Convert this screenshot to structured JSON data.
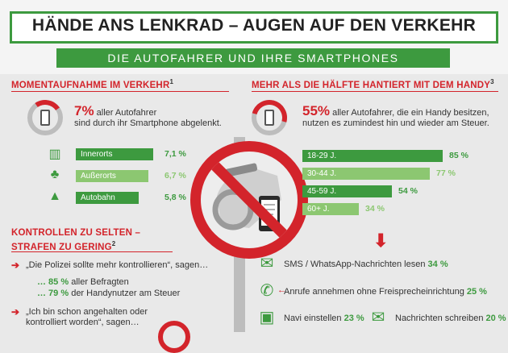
{
  "header": {
    "title": "HÄNDE ANS LENKRAD – AUGEN AUF DEN VERKEHR",
    "subtitle": "DIE AUTOFAHRER UND IHRE SMARTPHONES"
  },
  "left": {
    "heading": "MOMENTAUFNAHME IM VERKEHR",
    "heading_sup": "1",
    "stat": {
      "pct": "7%",
      "line1": " aller Autofahrer",
      "line2": "sind durch ihr Smartphone abgelenkt."
    },
    "rows": [
      {
        "label": "Innerorts",
        "value": "7,1 %",
        "icon": "buildings-icon",
        "color": "#3d9a3f",
        "fraction": 0.92
      },
      {
        "label": "Außerorts",
        "value": "6,7 %",
        "icon": "trees-icon",
        "color": "#8cc771",
        "fraction": 0.87
      },
      {
        "label": "Autobahn",
        "value": "5,8 %",
        "icon": "road-icon",
        "color": "#3d9a3f",
        "fraction": 0.75
      }
    ],
    "heading2_line1": "KONTROLLEN ZU SELTEN –",
    "heading2_line2": "STRAFEN ZU GERING",
    "heading2_sup": "2",
    "q1": "„Die Polizei sollte mehr kontrollieren“, sagen…",
    "q1a_val": "… 85 %",
    "q1a_txt": " aller Befragten",
    "q1b_val": "… 79 %",
    "q1b_txt": " der Handynutzer am Steuer",
    "q2_line1": "„Ich bin schon angehalten oder",
    "q2_line2": "kontrolliert worden“, sagen…"
  },
  "right": {
    "heading": "MEHR ALS DIE HÄLFTE HANTIERT MIT DEM HANDY",
    "heading_sup": "3",
    "stat": {
      "pct": "55%",
      "line1": " aller Autofahrer, die ein Handy besitzen,",
      "line2": "nutzen es zumindest hin und wieder am Steuer."
    },
    "ages": [
      {
        "label": "18-29 J.",
        "value": "85 %",
        "color": "#3d9a3f",
        "fraction": 0.85
      },
      {
        "label": "30-44 J.",
        "value": "77 %",
        "color": "#8cc771",
        "fraction": 0.77
      },
      {
        "label": "45-59 J.",
        "value": "54 %",
        "color": "#3d9a3f",
        "fraction": 0.54
      },
      {
        "label": "60+ J.",
        "value": "34 %",
        "color": "#8cc771",
        "fraction": 0.34
      }
    ],
    "activities": [
      {
        "label": "SMS / WhatsApp-Nachrichten lesen",
        "value": "34 %",
        "icon": "envelope-icon"
      },
      {
        "label": "Anrufe annehmen ohne Freisprecheinrichtung",
        "value": "25 %",
        "icon": "phone-call-icon"
      },
      {
        "label": "Navi einstellen",
        "value": "23 %",
        "icon": "navigation-icon"
      },
      {
        "label": "Nachrichten schreiben",
        "value": "20 %",
        "icon": "write-message-icon"
      }
    ]
  },
  "colors": {
    "green": "#3d9a3f",
    "light_green": "#8cc771",
    "red": "#d3242b",
    "gray": "#bdbdbd"
  }
}
